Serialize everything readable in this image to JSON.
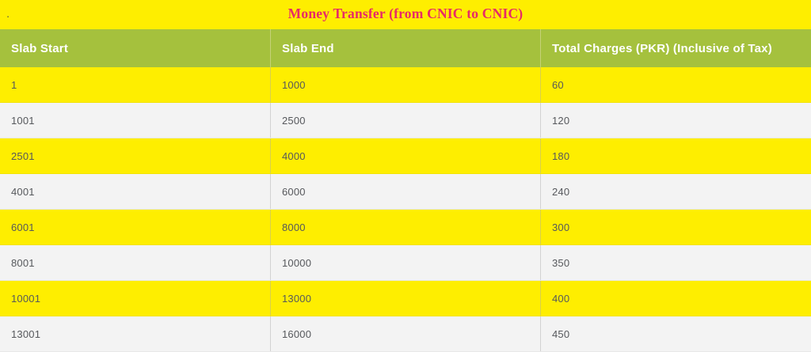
{
  "title_band": {
    "stray_period": ".",
    "title": "Money Transfer (from CNIC to CNIC)"
  },
  "colors": {
    "band_yellow": "#feee00",
    "header_green": "#a5c13d",
    "row_yellow": "#feee00",
    "row_gray": "#f3f3f3",
    "header_text": "#ffffff",
    "body_text": "#56585c",
    "title_text": "#e72a68"
  },
  "chart_data": {
    "type": "table",
    "title": "Money Transfer (from CNIC to CNIC)",
    "columns": [
      "Slab Start",
      "Slab End",
      "Total Charges (PKR) (Inclusive of Tax)"
    ],
    "rows": [
      [
        "1",
        "1000",
        "60"
      ],
      [
        "1001",
        "2500",
        "120"
      ],
      [
        "2501",
        "4000",
        "180"
      ],
      [
        "4001",
        "6000",
        "240"
      ],
      [
        "6001",
        "8000",
        "300"
      ],
      [
        "8001",
        "10000",
        "350"
      ],
      [
        "10001",
        "13000",
        "400"
      ],
      [
        "13001",
        "16000",
        "450"
      ]
    ]
  }
}
